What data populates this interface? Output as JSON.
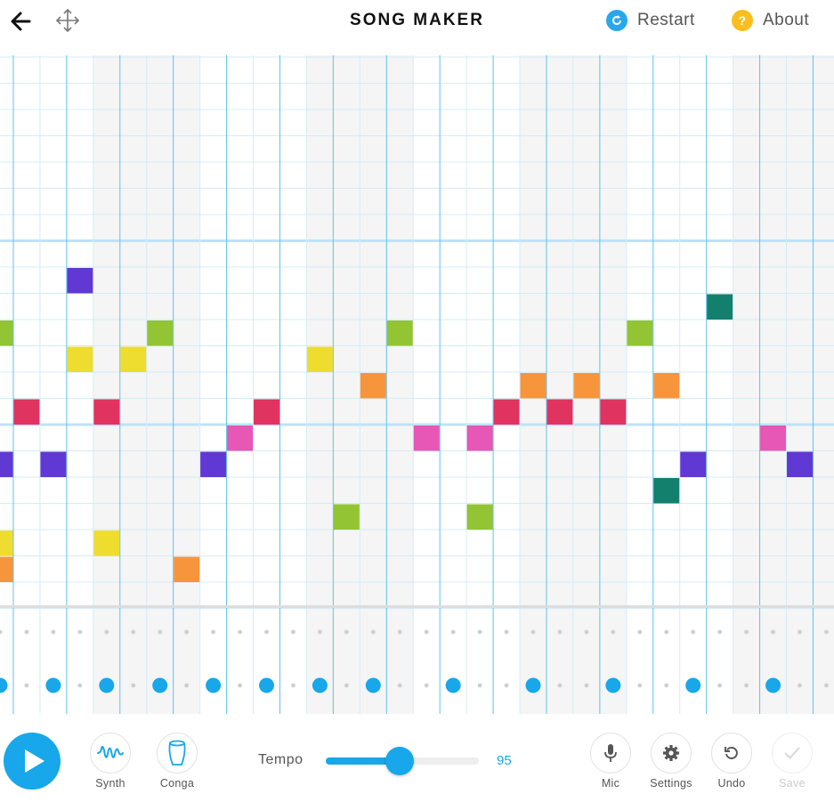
{
  "header": {
    "title": "SONG MAKER",
    "restart_label": "Restart",
    "about_label": "About",
    "about_icon_glyph": "?",
    "back_icon": "arrow-left-icon",
    "move_icon": "move-arrows-icon"
  },
  "colors": {
    "accent": "#17a7ea",
    "restart_icon_bg": "#2aa7ea",
    "about_icon_bg": "#fbbe1e",
    "grid_line": "#d4ecf9",
    "bar_line": "#5cc3ee",
    "octave_line": "#bfe2f6",
    "shaded_column": "#f5f5f5",
    "rhythm_dot_small": "#cfcfcf"
  },
  "grid": {
    "columns": 32,
    "rows": 21,
    "melody_notes": [
      {
        "col": 0,
        "row": 18,
        "color": "#eedd2f"
      },
      {
        "col": 0,
        "row": 15,
        "color": "#6038d4"
      },
      {
        "col": 0,
        "row": 10,
        "color": "#92c434"
      },
      {
        "col": 0,
        "row": 19,
        "color": "#f7953d"
      },
      {
        "col": 1,
        "row": 13,
        "color": "#e13360"
      },
      {
        "col": 2,
        "row": 15,
        "color": "#6038d4"
      },
      {
        "col": 3,
        "row": 8,
        "color": "#6038d4"
      },
      {
        "col": 3,
        "row": 11,
        "color": "#eedd2f"
      },
      {
        "col": 4,
        "row": 13,
        "color": "#e13360"
      },
      {
        "col": 4,
        "row": 18,
        "color": "#eedd2f"
      },
      {
        "col": 5,
        "row": 11,
        "color": "#eedd2f"
      },
      {
        "col": 6,
        "row": 10,
        "color": "#92c434"
      },
      {
        "col": 7,
        "row": 19,
        "color": "#f7953d"
      },
      {
        "col": 8,
        "row": 15,
        "color": "#6038d4"
      },
      {
        "col": 9,
        "row": 14,
        "color": "#e657b6"
      },
      {
        "col": 10,
        "row": 13,
        "color": "#e13360"
      },
      {
        "col": 12,
        "row": 11,
        "color": "#eedd2f"
      },
      {
        "col": 13,
        "row": 17,
        "color": "#92c434"
      },
      {
        "col": 14,
        "row": 12,
        "color": "#f7953d"
      },
      {
        "col": 15,
        "row": 10,
        "color": "#92c434"
      },
      {
        "col": 16,
        "row": 14,
        "color": "#e657b6"
      },
      {
        "col": 18,
        "row": 14,
        "color": "#e657b6"
      },
      {
        "col": 18,
        "row": 17,
        "color": "#92c434"
      },
      {
        "col": 19,
        "row": 13,
        "color": "#e13360"
      },
      {
        "col": 20,
        "row": 12,
        "color": "#f7953d"
      },
      {
        "col": 21,
        "row": 13,
        "color": "#e13360"
      },
      {
        "col": 22,
        "row": 12,
        "color": "#f7953d"
      },
      {
        "col": 23,
        "row": 13,
        "color": "#e13360"
      },
      {
        "col": 24,
        "row": 10,
        "color": "#92c434"
      },
      {
        "col": 25,
        "row": 12,
        "color": "#f7953d"
      },
      {
        "col": 25,
        "row": 16,
        "color": "#13806d"
      },
      {
        "col": 26,
        "row": 15,
        "color": "#6038d4"
      },
      {
        "col": 27,
        "row": 9,
        "color": "#13806d"
      },
      {
        "col": 29,
        "row": 14,
        "color": "#e657b6"
      },
      {
        "col": 30,
        "row": 15,
        "color": "#6038d4"
      }
    ],
    "rhythm_big_dot_columns": [
      0,
      2,
      4,
      6,
      8,
      10,
      12,
      14,
      17,
      20,
      23,
      26,
      29
    ]
  },
  "toolbar": {
    "instrument_label": "Synth",
    "instrument_icon": "synth-wave-icon",
    "percussion_label": "Conga",
    "percussion_icon": "conga-drum-icon",
    "tempo_label": "Tempo",
    "tempo_value": "95",
    "tempo_fraction": 0.48,
    "mic_label": "Mic",
    "settings_label": "Settings",
    "undo_label": "Undo",
    "save_label": "Save"
  }
}
